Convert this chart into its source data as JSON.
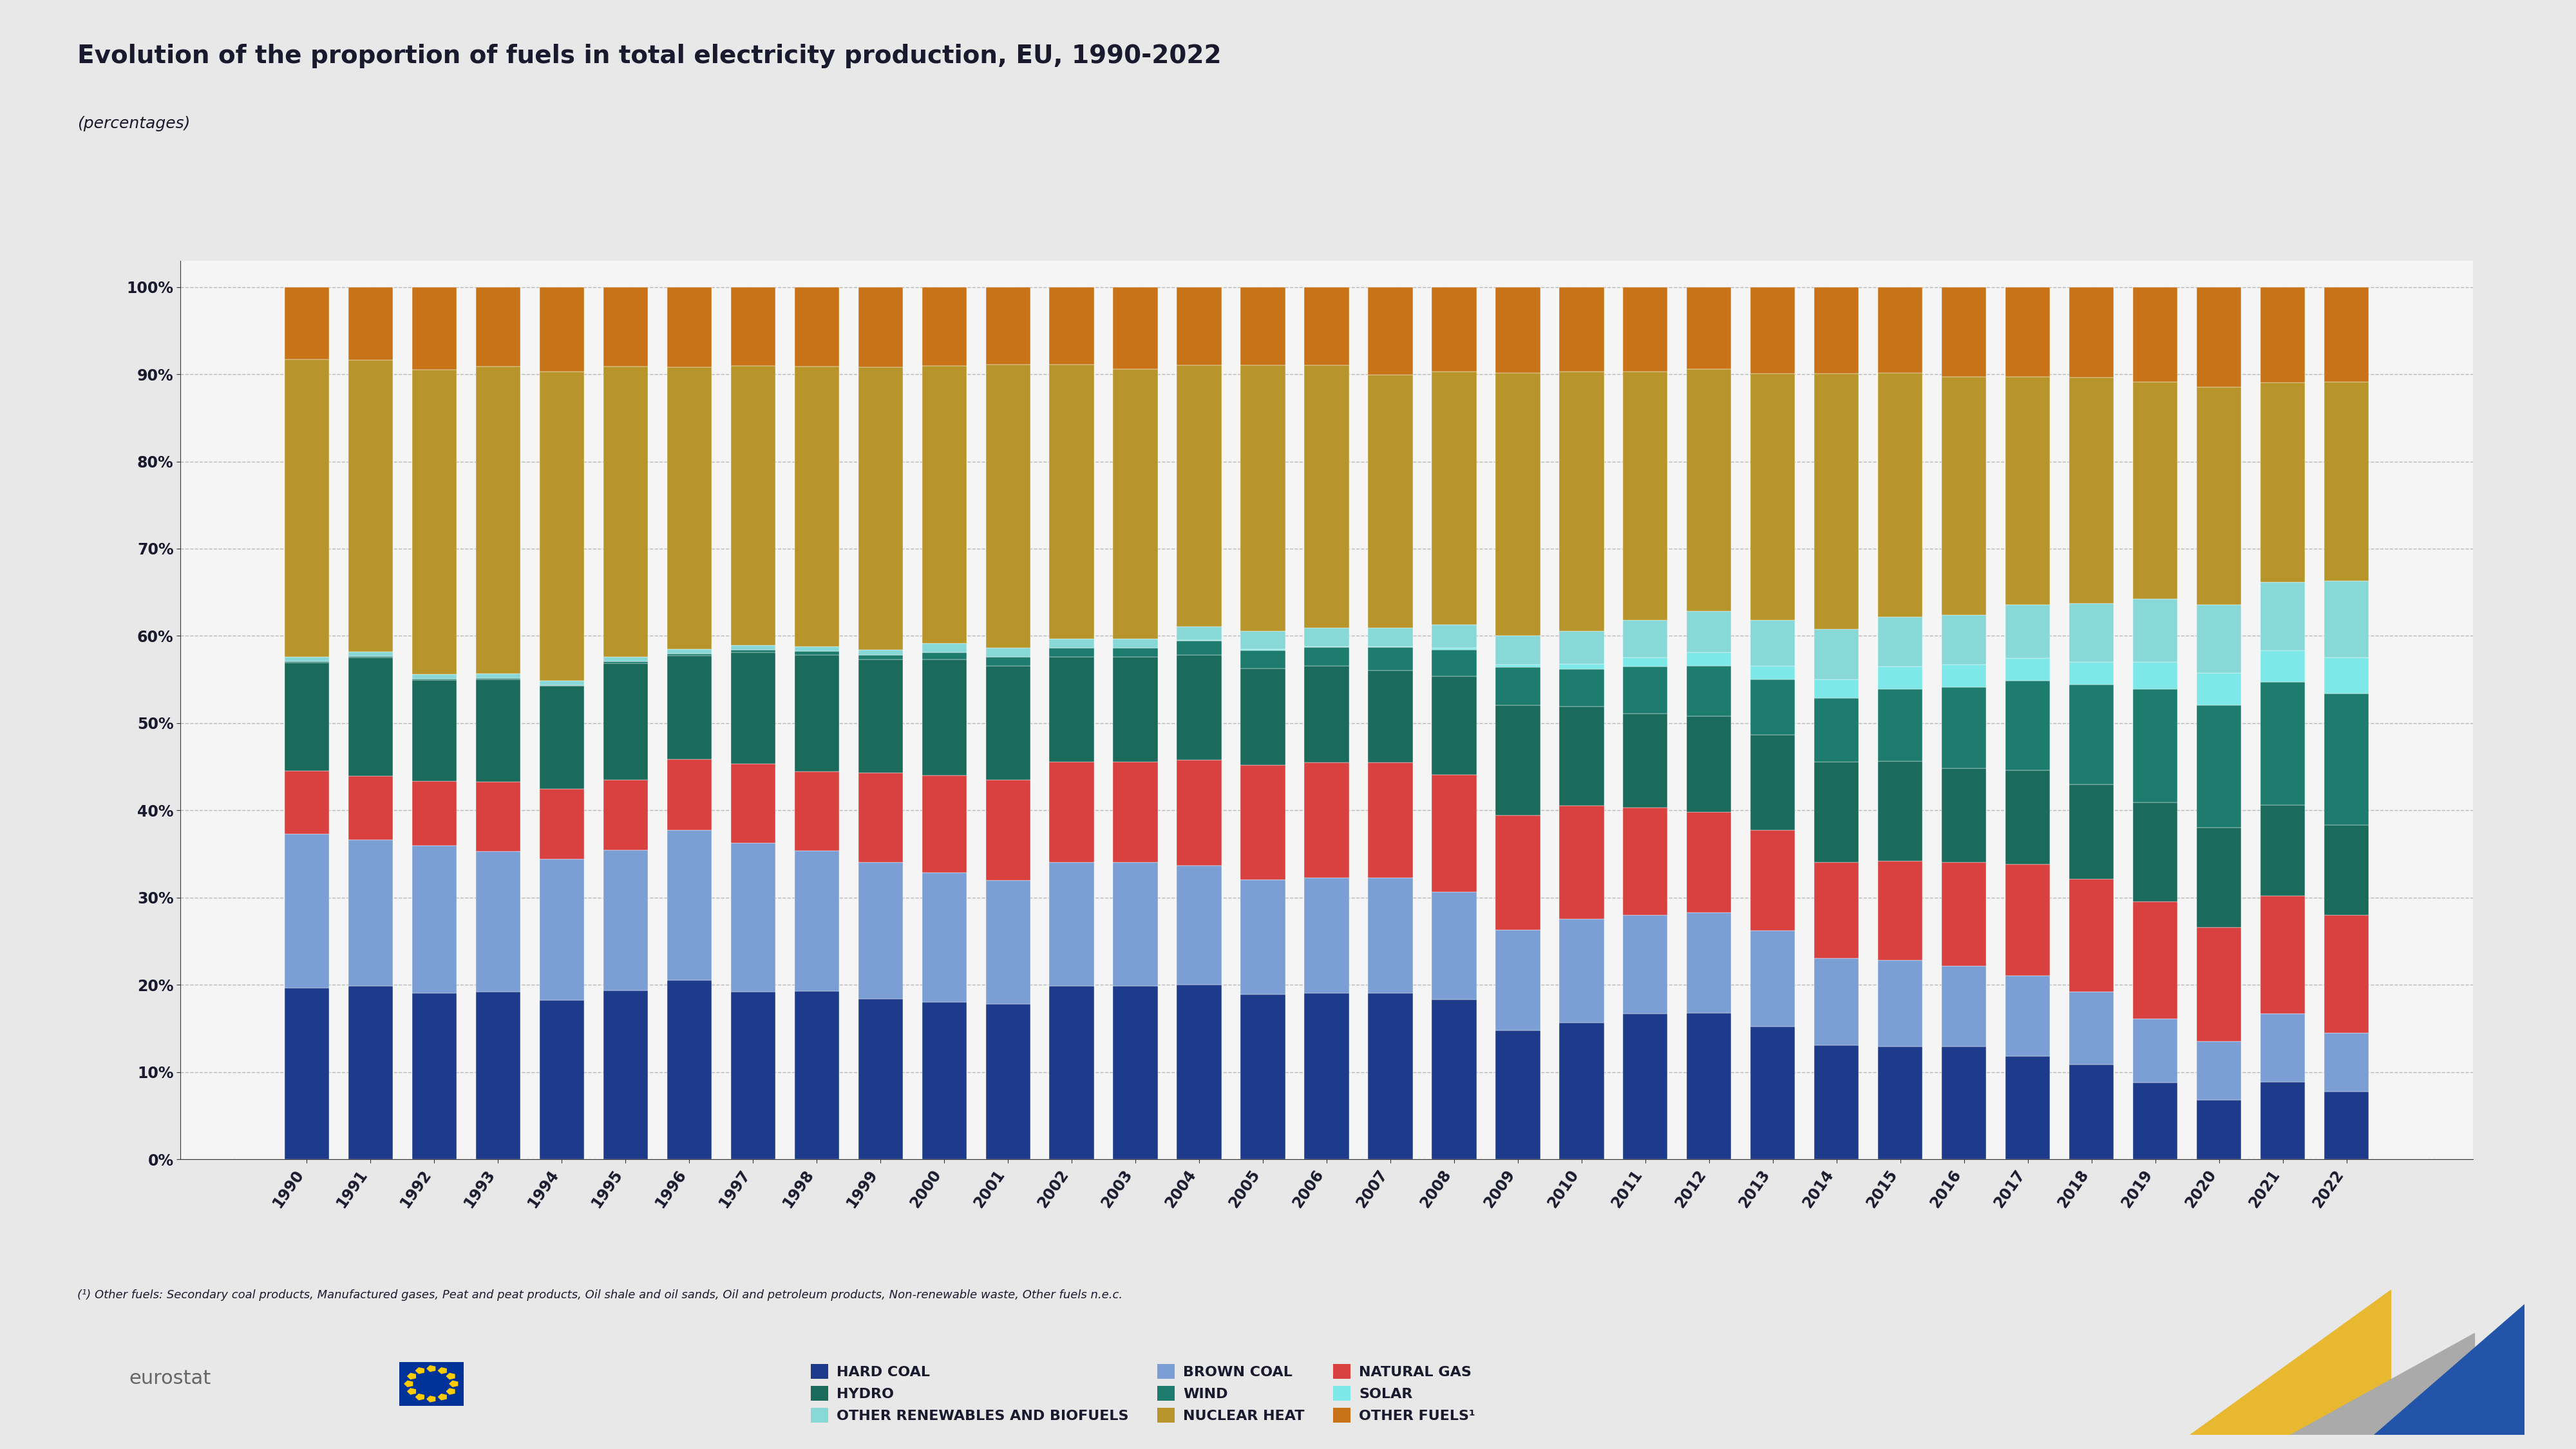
{
  "title": "Evolution of the proportion of fuels in total electricity production, EU, 1990-2022",
  "subtitle": "(percentages)",
  "background_color": "#e8e8e8",
  "plot_background": "#f5f5f5",
  "years": [
    1990,
    1991,
    1992,
    1993,
    1994,
    1995,
    1996,
    1997,
    1998,
    1999,
    2000,
    2001,
    2002,
    2003,
    2004,
    2005,
    2006,
    2007,
    2008,
    2009,
    2010,
    2011,
    2012,
    2013,
    2014,
    2015,
    2016,
    2017,
    2018,
    2019,
    2020,
    2021,
    2022
  ],
  "series": {
    "HARD COAL": [
      19.0,
      19.0,
      18.0,
      18.0,
      17.0,
      18.0,
      19.0,
      18.0,
      18.0,
      17.0,
      17.0,
      17.0,
      19.0,
      19.0,
      19.0,
      18.0,
      18.0,
      18.0,
      17.0,
      13.5,
      14.5,
      15.5,
      16.0,
      14.5,
      12.5,
      12.5,
      12.5,
      11.5,
      10.5,
      8.5,
      6.5,
      8.5,
      7.5
    ],
    "BROWN COAL": [
      17.0,
      16.0,
      16.0,
      15.0,
      15.0,
      15.0,
      16.0,
      16.0,
      15.0,
      14.5,
      14.0,
      13.5,
      13.5,
      13.5,
      13.0,
      12.5,
      12.5,
      12.5,
      11.5,
      10.5,
      11.0,
      10.5,
      11.0,
      10.5,
      9.5,
      9.5,
      9.0,
      9.0,
      8.0,
      7.0,
      6.5,
      7.5,
      6.5
    ],
    "NATURAL GAS": [
      7.0,
      7.0,
      7.0,
      7.5,
      7.5,
      7.5,
      7.5,
      8.5,
      8.5,
      9.5,
      10.5,
      11.0,
      11.0,
      11.0,
      11.5,
      12.5,
      12.5,
      12.5,
      12.5,
      12.0,
      12.0,
      11.5,
      11.0,
      11.0,
      10.5,
      11.0,
      11.5,
      12.5,
      12.5,
      13.0,
      12.5,
      13.0,
      13.0
    ],
    "HYDRO": [
      12.0,
      13.0,
      11.0,
      11.0,
      11.0,
      12.5,
      11.0,
      12.0,
      12.5,
      12.0,
      12.5,
      12.5,
      11.5,
      11.5,
      11.5,
      10.5,
      10.5,
      10.0,
      10.5,
      11.5,
      10.5,
      10.0,
      10.5,
      10.5,
      11.0,
      11.0,
      10.5,
      10.5,
      10.5,
      11.0,
      11.0,
      10.0,
      10.0
    ],
    "WIND": [
      0.1,
      0.1,
      0.1,
      0.1,
      0.1,
      0.2,
      0.2,
      0.3,
      0.4,
      0.5,
      0.8,
      1.0,
      1.0,
      1.0,
      1.5,
      2.0,
      2.0,
      2.5,
      2.8,
      4.0,
      4.0,
      5.0,
      5.5,
      6.0,
      7.0,
      8.0,
      9.0,
      10.0,
      11.0,
      12.5,
      13.5,
      13.5,
      14.5
    ],
    "SOLAR": [
      0.0,
      0.0,
      0.0,
      0.0,
      0.0,
      0.0,
      0.0,
      0.0,
      0.0,
      0.0,
      0.0,
      0.0,
      0.0,
      0.0,
      0.1,
      0.1,
      0.1,
      0.1,
      0.2,
      0.3,
      0.5,
      1.0,
      1.5,
      1.5,
      2.0,
      2.5,
      2.5,
      2.5,
      2.5,
      3.0,
      3.5,
      3.5,
      4.0
    ],
    "OTHER RENEWABLES AND BIOFUELS": [
      0.5,
      0.5,
      0.5,
      0.5,
      0.5,
      0.5,
      0.5,
      0.5,
      0.5,
      0.5,
      1.0,
      1.0,
      1.0,
      1.0,
      1.5,
      2.0,
      2.0,
      2.0,
      2.5,
      3.0,
      3.5,
      4.0,
      4.5,
      5.0,
      5.5,
      5.5,
      5.5,
      6.0,
      6.5,
      7.0,
      7.5,
      7.5,
      8.5
    ],
    "NUCLEAR HEAT": [
      33.0,
      32.0,
      33.0,
      33.0,
      33.0,
      31.0,
      30.0,
      30.0,
      30.0,
      30.0,
      30.0,
      31.0,
      30.0,
      29.5,
      28.5,
      29.0,
      28.5,
      27.5,
      27.0,
      27.5,
      27.5,
      26.5,
      26.5,
      27.0,
      28.0,
      27.0,
      26.5,
      25.5,
      25.0,
      24.0,
      24.0,
      22.0,
      22.0
    ],
    "OTHER FUELS": [
      8.0,
      8.0,
      9.0,
      8.5,
      9.0,
      8.5,
      8.5,
      8.5,
      8.5,
      8.5,
      8.5,
      8.5,
      8.5,
      9.0,
      8.5,
      8.5,
      8.5,
      9.5,
      9.0,
      9.0,
      9.0,
      9.0,
      9.0,
      9.5,
      9.5,
      9.5,
      10.0,
      10.0,
      10.0,
      10.5,
      11.0,
      10.5,
      10.5
    ]
  },
  "colors": {
    "HARD COAL": "#1e3a8a",
    "BROWN COAL": "#7b9fd4",
    "NATURAL GAS": "#d94040",
    "HYDRO": "#1a6b5c",
    "WIND": "#1d7c6e",
    "SOLAR": "#7ee8e8",
    "OTHER RENEWABLES AND BIOFUELS": "#88d8d8",
    "NUCLEAR HEAT": "#b8952a",
    "OTHER FUELS": "#c87318"
  },
  "stack_order": [
    "HARD COAL",
    "BROWN COAL",
    "NATURAL GAS",
    "HYDRO",
    "WIND",
    "SOLAR",
    "OTHER RENEWABLES AND BIOFUELS",
    "NUCLEAR HEAT",
    "OTHER FUELS"
  ],
  "legend_items": [
    [
      "HARD COAL",
      "#1e3a8a"
    ],
    [
      "HYDRO",
      "#1a6b5c"
    ],
    [
      "OTHER RENEWABLES AND BIOFUELS",
      "#88d8d8"
    ],
    [
      "BROWN COAL",
      "#7b9fd4"
    ],
    [
      "WIND",
      "#1d7c6e"
    ],
    [
      "NUCLEAR HEAT",
      "#b8952a"
    ],
    [
      "NATURAL GAS",
      "#d94040"
    ],
    [
      "SOLAR",
      "#7ee8e8"
    ],
    [
      "OTHER FUELS¹",
      "#c87318"
    ]
  ],
  "footnote": "(¹) Other fuels: Secondary coal products, Manufactured gases, Peat and peat products, Oil shale and oil sands, Oil and petroleum products, Non-renewable waste, Other fuels n.e.c.",
  "title_fontsize": 28,
  "subtitle_fontsize": 18,
  "tick_fontsize": 17,
  "legend_fontsize": 16,
  "footnote_fontsize": 13
}
